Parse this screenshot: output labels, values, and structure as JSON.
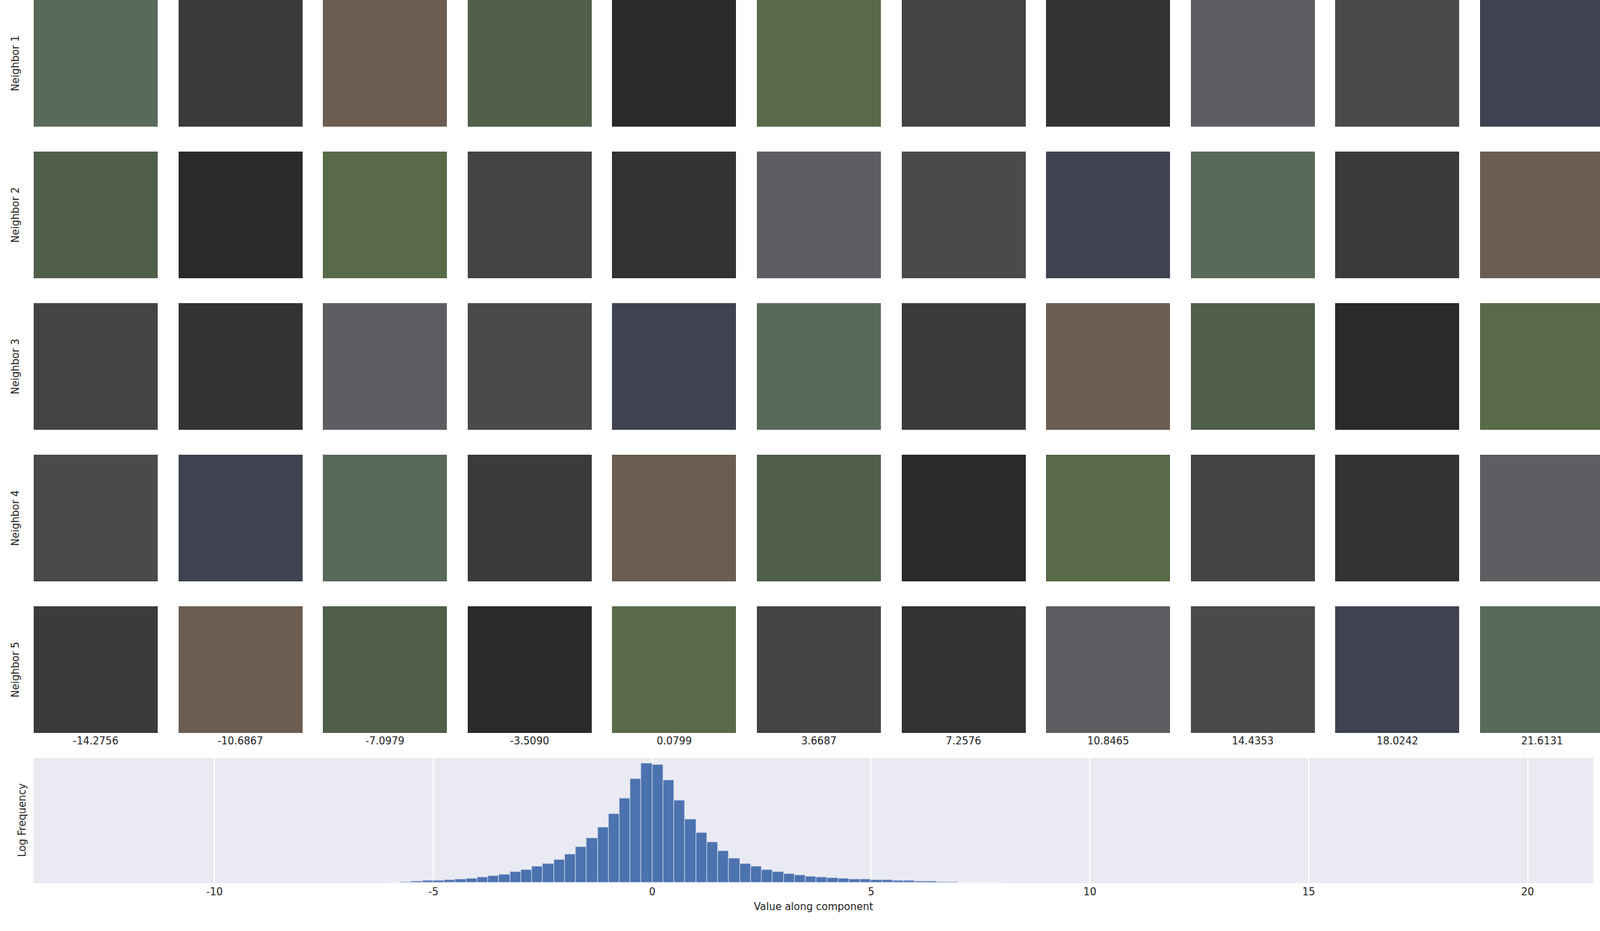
{
  "image_grid": {
    "row_labels": [
      "Neighbor 1",
      "Neighbor 2",
      "Neighbor 3",
      "Neighbor 4",
      "Neighbor 5"
    ],
    "column_values": [
      -14.2756,
      -10.6867,
      -7.0979,
      {
        "value": -3.509,
        "label": "-3.5090"
      },
      0.0799,
      3.6687,
      7.2576,
      10.8465,
      14.4353,
      18.0242,
      21.6131
    ]
  },
  "chart_data": {
    "type": "histogram",
    "x_label": "Value along component",
    "y_label": "Log Frequency",
    "bins": [
      -6,
      -5.75,
      -5.5,
      -5.25,
      -5,
      -4.75,
      -4.5,
      -4.25,
      -4,
      -3.75,
      -3.5,
      -3.25,
      -3,
      -2.75,
      -2.5,
      -2.25,
      -2,
      -1.75,
      -1.5,
      -1.25,
      -1,
      -0.75,
      -0.5,
      -0.25,
      0,
      0.25,
      0.5,
      0.75,
      1,
      1.25,
      1.5,
      1.75,
      2,
      2.25,
      2.5,
      2.75,
      3,
      3.25,
      3.5,
      3.75,
      4,
      4.25,
      4.5,
      4.75,
      5,
      5.25,
      5.5,
      5.75,
      6,
      6.25,
      6.5,
      6.75,
      7,
      7.25,
      7.5,
      7.75,
      8
    ],
    "values": [
      0.01,
      0.04,
      0.06,
      0.08,
      0.1,
      0.12,
      0.15,
      0.2,
      0.25,
      0.32,
      0.39,
      0.49,
      0.59,
      0.74,
      0.88,
      1.08,
      1.33,
      1.67,
      2.06,
      2.56,
      3.19,
      3.93,
      4.82,
      5.55,
      5.5,
      4.77,
      3.83,
      2.95,
      2.31,
      1.87,
      1.47,
      1.13,
      0.88,
      0.74,
      0.59,
      0.49,
      0.42,
      0.34,
      0.29,
      0.25,
      0.21,
      0.19,
      0.16,
      0.15,
      0.13,
      0.11,
      0.1,
      0.08,
      0.07,
      0.05,
      0.04,
      0.02,
      0.01,
      0.01,
      0.005,
      0.005
    ],
    "color": "#4c72b0",
    "xlim": [
      -14.13,
      21.5
    ],
    "xticks": [
      -10,
      -5,
      0,
      5,
      10,
      15,
      20
    ],
    "ylim": [
      0,
      5.8
    ],
    "grid": true,
    "tick_labels": "x"
  }
}
